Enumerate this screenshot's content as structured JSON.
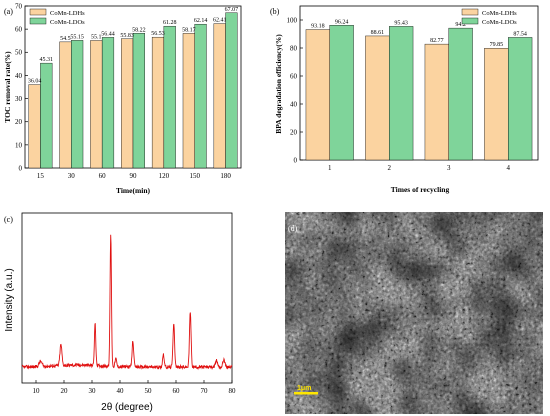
{
  "panels": {
    "a": "(a)",
    "b": "(b)",
    "c": "(c)",
    "d": "(d)"
  },
  "colors": {
    "ldh": "#fbd3a0",
    "ldo": "#7fd49a",
    "xrd": "#e01010",
    "sem_bg": "#6d6d6d"
  },
  "scale_bar_text": "1μm",
  "chart_data": [
    {
      "id": "a",
      "type": "bar",
      "xlabel": "Time(min)",
      "ylabel": "TOC removal rate(%)",
      "categories": [
        "15",
        "30",
        "60",
        "90",
        "120",
        "150",
        "180"
      ],
      "ylim": [
        0,
        70
      ],
      "yticks": [
        0,
        10,
        20,
        30,
        40,
        50,
        60,
        70
      ],
      "legend_position": "top-left",
      "series": [
        {
          "name": "CoMn-LDHs",
          "values": [
            36.04,
            54.5,
            55.1,
            55.83,
            56.53,
            58.17,
            62.41
          ],
          "labels": [
            "36.04",
            "54.5",
            "55.1",
            "55.83",
            "56.53",
            "58.17",
            "62.41"
          ]
        },
        {
          "name": "CoMn-LDOs",
          "values": [
            45.31,
            55.15,
            56.44,
            58.22,
            61.28,
            62.14,
            67.07
          ],
          "labels": [
            "45.31",
            "55.15",
            "56.44",
            "58.22",
            "61.28",
            "62.14",
            "67.07"
          ]
        }
      ]
    },
    {
      "id": "b",
      "type": "bar",
      "xlabel": "Times of recycling",
      "ylabel": "BPA degradation efficiency(%)",
      "categories": [
        "1",
        "2",
        "3",
        "4"
      ],
      "ylim": [
        0,
        110
      ],
      "yticks": [
        0,
        20,
        40,
        60,
        80,
        100
      ],
      "legend_position": "top-right",
      "series": [
        {
          "name": "CoMn-LDHs",
          "values": [
            93.18,
            88.61,
            82.77,
            79.85
          ],
          "labels": [
            "93.18",
            "88.61",
            "82.77",
            "79.85"
          ]
        },
        {
          "name": "CoMn-LDOs",
          "values": [
            96.24,
            95.43,
            94.2,
            87.54
          ],
          "labels": [
            "96.24",
            "95.43",
            "94.2",
            "87.54"
          ]
        }
      ]
    },
    {
      "id": "c",
      "type": "line",
      "xlabel": "2θ (degree)",
      "ylabel": "Intensity (a.u.)",
      "xlim": [
        5,
        80
      ],
      "xticks": [
        10,
        20,
        30,
        40,
        50,
        60,
        70,
        80
      ],
      "baseline": 0.06,
      "peaks": [
        {
          "x": 11.6,
          "height": 0.04,
          "width": 0.7
        },
        {
          "x": 18.9,
          "height": 0.16,
          "width": 0.5
        },
        {
          "x": 31.1,
          "height": 0.32,
          "width": 0.35
        },
        {
          "x": 36.7,
          "height": 1.0,
          "width": 0.35
        },
        {
          "x": 38.5,
          "height": 0.06,
          "width": 0.4
        },
        {
          "x": 44.6,
          "height": 0.2,
          "width": 0.4
        },
        {
          "x": 55.5,
          "height": 0.1,
          "width": 0.4
        },
        {
          "x": 59.2,
          "height": 0.34,
          "width": 0.4
        },
        {
          "x": 65.1,
          "height": 0.42,
          "width": 0.4
        },
        {
          "x": 74.5,
          "height": 0.05,
          "width": 0.5
        },
        {
          "x": 77.1,
          "height": 0.06,
          "width": 0.5
        }
      ]
    }
  ]
}
